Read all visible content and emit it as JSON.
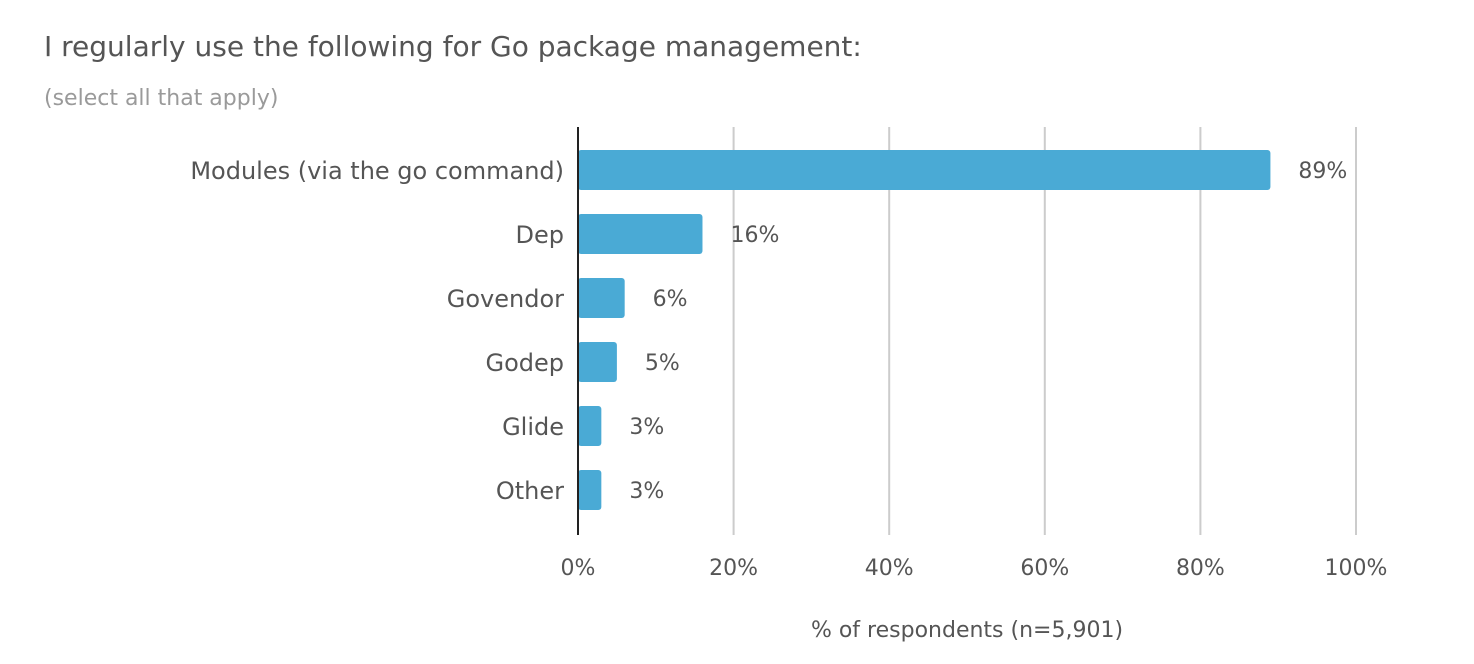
{
  "chart_data": {
    "type": "bar",
    "orientation": "horizontal",
    "title": "I regularly use the following for Go package management:",
    "subtitle": "(select all that apply)",
    "categories": [
      "Modules (via the go command)",
      "Dep",
      "Govendor",
      "Godep",
      "Glide",
      "Other"
    ],
    "values": [
      89,
      16,
      6,
      5,
      3,
      3
    ],
    "value_labels": [
      "89%",
      "16%",
      "6%",
      "5%",
      "3%",
      "3%"
    ],
    "xlabel": "% of respondents (n=5,901)",
    "ylabel": "",
    "xlim": [
      0,
      100
    ],
    "ticks": [
      0,
      20,
      40,
      60,
      80,
      100
    ],
    "tick_labels": [
      "0%",
      "20%",
      "40%",
      "60%",
      "80%",
      "100%"
    ],
    "grid": true,
    "legend": "none",
    "bar_color": "#4aaad5"
  }
}
